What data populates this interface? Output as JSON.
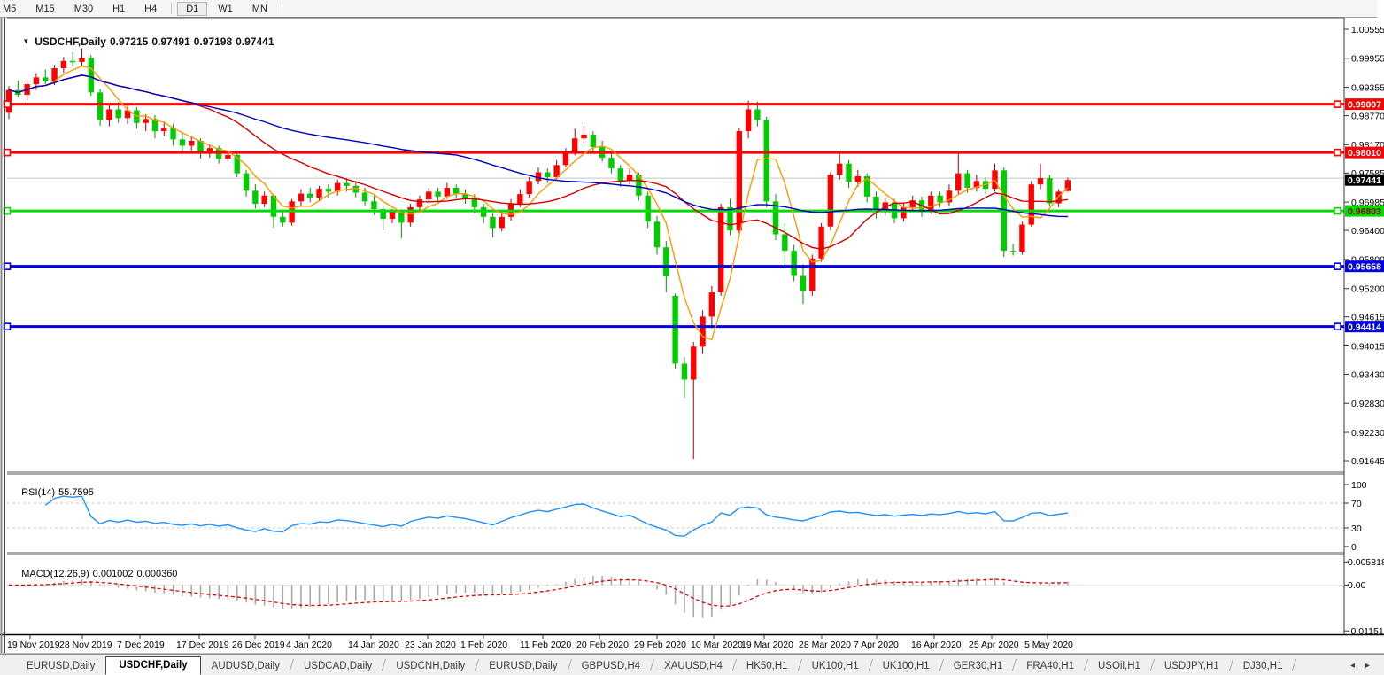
{
  "toolbar": {
    "timeframes": [
      "M5",
      "M15",
      "M30",
      "H1",
      "H4",
      "D1",
      "W1",
      "MN"
    ],
    "active_timeframe": "D1"
  },
  "chart": {
    "title_symbol": "USDCHF,Daily",
    "ohlc": {
      "open": "0.97215",
      "high": "0.97491",
      "low": "0.97198",
      "close": "0.97441"
    }
  },
  "rsi_panel": {
    "label": "RSI(14)",
    "value": "55.7595"
  },
  "macd_panel": {
    "label": "MACD(12,26,9)",
    "main_value": "0.001002",
    "signal_value": "0.000360"
  },
  "chart_data": {
    "type": "candlestick",
    "symbol": "USDCHF",
    "timeframe": "Daily",
    "title": "USDCHF,Daily  0.97215 0.97491 0.97198 0.97441",
    "x_labels": [
      "19 Nov 2019",
      "28 Nov 2019",
      "7 Dec 2019",
      "17 Dec 2019",
      "26 Dec 2019",
      "4 Jan 2020",
      "14 Jan 2020",
      "23 Jan 2020",
      "1 Feb 2020",
      "11 Feb 2020",
      "20 Feb 2020",
      "29 Feb 2020",
      "10 Mar 2020",
      "19 Mar 2020",
      "28 Mar 2020",
      "7 Apr 2020",
      "16 Apr 2020",
      "25 Apr 2020",
      "5 May 2020"
    ],
    "y_axis_ticks": [
      "1.00555",
      "0.99955",
      "0.99355",
      "0.98770",
      "0.98170",
      "0.97585",
      "0.96985",
      "0.96400",
      "0.95800",
      "0.95200",
      "0.94615",
      "0.94015",
      "0.93430",
      "0.92830",
      "0.92230",
      "0.91645"
    ],
    "ylim": [
      0.91645,
      1.00555
    ],
    "current_price": {
      "value": 0.97441,
      "label": "0.97441",
      "tag_bg": "#000000",
      "tag_text": "#ffffff"
    },
    "ask_line": {
      "value": 0.9748,
      "color": "#c4c4c4"
    },
    "hlines": [
      {
        "price": 0.99007,
        "label": "0.99007",
        "color": "#ff0000",
        "text_color": "#ffffff"
      },
      {
        "price": 0.9801,
        "label": "0.98010",
        "color": "#ff0000",
        "text_color": "#ffffff"
      },
      {
        "price": 0.96803,
        "label": "0.96803",
        "color": "#00dc00",
        "text_color": "#8b0000"
      },
      {
        "price": 0.95658,
        "label": "0.95658",
        "color": "#0000e1",
        "text_color": "#ffffff"
      },
      {
        "price": 0.94414,
        "label": "0.94414",
        "color": "#0000e1",
        "text_color": "#ffffff"
      }
    ],
    "moving_averages": [
      {
        "period": 5,
        "color": "#ff9900"
      },
      {
        "period": 20,
        "color": "#d40000"
      },
      {
        "period": 50,
        "color": "#0000c0"
      }
    ],
    "candle_colors": {
      "up_body": "#ff0000",
      "up_wick": "#aa0000",
      "down_body": "#00cc00",
      "down_wick": "#009400"
    },
    "rsi": {
      "label": "RSI(14)",
      "period": 14,
      "value": 55.7595,
      "color": "#1e90ff",
      "levels": [
        70,
        30
      ],
      "ticks": [
        "100",
        "70",
        "30",
        "0"
      ],
      "scale": [
        0,
        100
      ]
    },
    "macd": {
      "label": "MACD(12,26,9)",
      "fast": 12,
      "slow": 26,
      "signal": 9,
      "main_value": 0.001002,
      "signal_value": 0.00036,
      "ticks": [
        "0.005818",
        "0.00",
        "-0.011514"
      ],
      "range": [
        0.005818,
        -0.011514
      ],
      "histogram_color": "#a9a9a9",
      "signal_color": "#e00000"
    },
    "candles": [
      [
        0.9883,
        0.9938,
        0.987,
        0.993
      ],
      [
        0.993,
        0.995,
        0.9915,
        0.992
      ],
      [
        0.992,
        0.9948,
        0.9908,
        0.9942
      ],
      [
        0.9942,
        0.9965,
        0.993,
        0.9956
      ],
      [
        0.9956,
        0.9972,
        0.9942,
        0.9948
      ],
      [
        0.9948,
        0.9982,
        0.994,
        0.9975
      ],
      [
        0.9975,
        0.9998,
        0.9965,
        0.999
      ],
      [
        0.999,
        1.0008,
        0.9978,
        0.9988
      ],
      [
        0.9988,
        1.0016,
        0.998,
        0.9996
      ],
      [
        0.9996,
        1.0002,
        0.9918,
        0.9925
      ],
      [
        0.9925,
        0.9932,
        0.9856,
        0.9868
      ],
      [
        0.9868,
        0.99,
        0.9855,
        0.989
      ],
      [
        0.989,
        0.9905,
        0.9862,
        0.9872
      ],
      [
        0.9872,
        0.9898,
        0.986,
        0.9888
      ],
      [
        0.9888,
        0.9895,
        0.985,
        0.9862
      ],
      [
        0.9862,
        0.988,
        0.9845,
        0.987
      ],
      [
        0.987,
        0.9878,
        0.983,
        0.9845
      ],
      [
        0.9845,
        0.9865,
        0.9835,
        0.9852
      ],
      [
        0.9852,
        0.986,
        0.9815,
        0.9828
      ],
      [
        0.9828,
        0.9842,
        0.9802,
        0.9815
      ],
      [
        0.9815,
        0.9835,
        0.9805,
        0.9825
      ],
      [
        0.9825,
        0.983,
        0.9788,
        0.98
      ],
      [
        0.98,
        0.9818,
        0.979,
        0.981
      ],
      [
        0.981,
        0.9815,
        0.9778,
        0.9788
      ],
      [
        0.9788,
        0.9805,
        0.978,
        0.9796
      ],
      [
        0.9796,
        0.98,
        0.975,
        0.9758
      ],
      [
        0.9758,
        0.9765,
        0.971,
        0.9722
      ],
      [
        0.9722,
        0.9735,
        0.9685,
        0.9695
      ],
      [
        0.9695,
        0.972,
        0.9688,
        0.9712
      ],
      [
        0.9712,
        0.9715,
        0.9646,
        0.9668
      ],
      [
        0.9668,
        0.968,
        0.9648,
        0.9656
      ],
      [
        0.9656,
        0.9705,
        0.965,
        0.97
      ],
      [
        0.97,
        0.9725,
        0.969,
        0.9716
      ],
      [
        0.9716,
        0.9728,
        0.9698,
        0.9708
      ],
      [
        0.9708,
        0.9732,
        0.97,
        0.9726
      ],
      [
        0.9726,
        0.9735,
        0.9708,
        0.972
      ],
      [
        0.972,
        0.9745,
        0.9712,
        0.9738
      ],
      [
        0.9738,
        0.9748,
        0.972,
        0.9732
      ],
      [
        0.9732,
        0.9742,
        0.9708,
        0.9718
      ],
      [
        0.9718,
        0.9728,
        0.9692,
        0.97
      ],
      [
        0.97,
        0.9712,
        0.9672,
        0.9684
      ],
      [
        0.9684,
        0.969,
        0.964,
        0.9664
      ],
      [
        0.9664,
        0.9685,
        0.9655,
        0.9678
      ],
      [
        0.9678,
        0.9682,
        0.9624,
        0.9656
      ],
      [
        0.9656,
        0.9695,
        0.9648,
        0.9688
      ],
      [
        0.9688,
        0.9712,
        0.968,
        0.9704
      ],
      [
        0.9704,
        0.9728,
        0.9696,
        0.972
      ],
      [
        0.972,
        0.9728,
        0.9698,
        0.971
      ],
      [
        0.971,
        0.9738,
        0.9705,
        0.9728
      ],
      [
        0.9728,
        0.9735,
        0.9705,
        0.9716
      ],
      [
        0.9716,
        0.9725,
        0.9695,
        0.9706
      ],
      [
        0.9706,
        0.9715,
        0.9675,
        0.9688
      ],
      [
        0.9688,
        0.9695,
        0.9655,
        0.9668
      ],
      [
        0.9668,
        0.9675,
        0.9626,
        0.9645
      ],
      [
        0.9645,
        0.9678,
        0.9638,
        0.9668
      ],
      [
        0.9668,
        0.9705,
        0.966,
        0.9695
      ],
      [
        0.9695,
        0.9725,
        0.9688,
        0.9715
      ],
      [
        0.9715,
        0.975,
        0.9708,
        0.9742
      ],
      [
        0.9742,
        0.977,
        0.9735,
        0.976
      ],
      [
        0.976,
        0.9768,
        0.9738,
        0.975
      ],
      [
        0.975,
        0.9785,
        0.9745,
        0.9775
      ],
      [
        0.9775,
        0.981,
        0.977,
        0.98
      ],
      [
        0.98,
        0.985,
        0.9795,
        0.983
      ],
      [
        0.983,
        0.9856,
        0.982,
        0.9838
      ],
      [
        0.9838,
        0.9845,
        0.9802,
        0.9812
      ],
      [
        0.9812,
        0.9825,
        0.9782,
        0.979
      ],
      [
        0.979,
        0.98,
        0.9758,
        0.9768
      ],
      [
        0.9768,
        0.9775,
        0.973,
        0.9742
      ],
      [
        0.9742,
        0.9768,
        0.9735,
        0.9755
      ],
      [
        0.9755,
        0.976,
        0.9702,
        0.9712
      ],
      [
        0.9712,
        0.972,
        0.9645,
        0.9658
      ],
      [
        0.9658,
        0.967,
        0.959,
        0.9605
      ],
      [
        0.9605,
        0.9618,
        0.9512,
        0.9545
      ],
      [
        0.9505,
        0.951,
        0.9355,
        0.9365
      ],
      [
        0.9365,
        0.9378,
        0.9295,
        0.9332
      ],
      [
        0.9332,
        0.941,
        0.9168,
        0.94
      ],
      [
        0.94,
        0.9475,
        0.9385,
        0.9462
      ],
      [
        0.9462,
        0.9525,
        0.9438,
        0.9512
      ],
      [
        0.9512,
        0.9695,
        0.9505,
        0.9688
      ],
      [
        0.9688,
        0.9705,
        0.963,
        0.964
      ],
      [
        0.964,
        0.9852,
        0.9635,
        0.9845
      ],
      [
        0.9845,
        0.9908,
        0.983,
        0.989
      ],
      [
        0.989,
        0.9906,
        0.9855,
        0.9868
      ],
      [
        0.9868,
        0.9875,
        0.9688,
        0.97
      ],
      [
        0.97,
        0.9715,
        0.962,
        0.9632
      ],
      [
        0.9632,
        0.9655,
        0.956,
        0.9598
      ],
      [
        0.9598,
        0.961,
        0.9535,
        0.9546
      ],
      [
        0.9546,
        0.957,
        0.9488,
        0.9515
      ],
      [
        0.9515,
        0.959,
        0.9505,
        0.9582
      ],
      [
        0.9582,
        0.9655,
        0.9575,
        0.9648
      ],
      [
        0.9648,
        0.976,
        0.964,
        0.9755
      ],
      [
        0.9755,
        0.9798,
        0.9745,
        0.9778
      ],
      [
        0.9778,
        0.9785,
        0.9728,
        0.974
      ],
      [
        0.974,
        0.9765,
        0.973,
        0.9752
      ],
      [
        0.9752,
        0.9758,
        0.9698,
        0.971
      ],
      [
        0.971,
        0.972,
        0.9665,
        0.9678
      ],
      [
        0.9678,
        0.9708,
        0.967,
        0.9698
      ],
      [
        0.9698,
        0.9705,
        0.9655,
        0.9665
      ],
      [
        0.9665,
        0.9698,
        0.9658,
        0.9688
      ],
      [
        0.9688,
        0.9712,
        0.968,
        0.9702
      ],
      [
        0.9702,
        0.971,
        0.9668,
        0.968
      ],
      [
        0.968,
        0.972,
        0.9675,
        0.9712
      ],
      [
        0.9712,
        0.972,
        0.9688,
        0.9698
      ],
      [
        0.9698,
        0.9735,
        0.969,
        0.9722
      ],
      [
        0.9722,
        0.98,
        0.9715,
        0.9758
      ],
      [
        0.9758,
        0.9765,
        0.9718,
        0.9728
      ],
      [
        0.9728,
        0.9755,
        0.972,
        0.9742
      ],
      [
        0.9742,
        0.975,
        0.9715,
        0.9726
      ],
      [
        0.9726,
        0.9778,
        0.972,
        0.9764
      ],
      [
        0.9764,
        0.977,
        0.9585,
        0.9598
      ],
      [
        0.9598,
        0.9612,
        0.9588,
        0.9596
      ],
      [
        0.9596,
        0.9658,
        0.959,
        0.9652
      ],
      [
        0.9652,
        0.9742,
        0.9648,
        0.9735
      ],
      [
        0.9735,
        0.9778,
        0.9725,
        0.9748
      ],
      [
        0.9748,
        0.9755,
        0.969,
        0.9696
      ],
      [
        0.9696,
        0.9725,
        0.9688,
        0.972
      ],
      [
        0.97215,
        0.97491,
        0.97198,
        0.97441
      ]
    ]
  },
  "tab_bar": {
    "tabs": [
      "EURUSD,Daily",
      "USDCHF,Daily",
      "AUDUSD,Daily",
      "USDCAD,Daily",
      "USDCNH,Daily",
      "EURUSD,Daily",
      "GBPUSD,H4",
      "XAUUSD,H4",
      "HK50,H1",
      "UK100,H1",
      "UK100,H1",
      "GER30,H1",
      "FRA40,H1",
      "USOil,H1",
      "USDJPY,H1",
      "DJ30,H1"
    ],
    "active_tab_index": 1,
    "scroll_left_icon": "◂",
    "scroll_right_icon": "▸"
  }
}
